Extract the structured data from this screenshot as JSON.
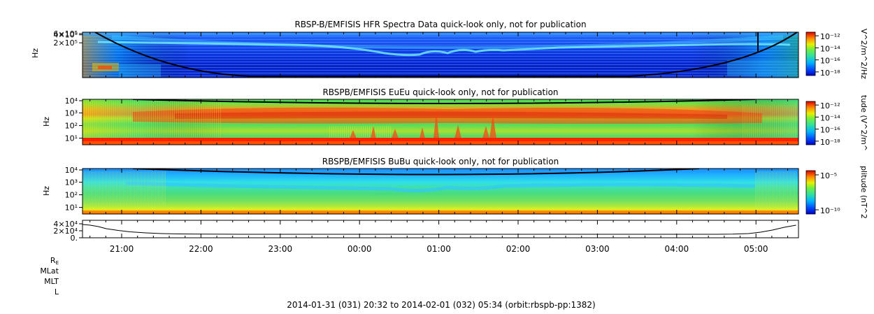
{
  "footer": "2014-01-31 (031) 20:32 to 2014-02-01 (032) 05:34 (orbit:rbspb-pp:1382)",
  "ephemeris_labels": [
    "R",
    "MLat",
    "MLT",
    "L"
  ],
  "ephemeris_label_subscript": "E",
  "chart_data": [
    {
      "type": "heatmap",
      "title": "RBSP-B/EMFISIS  HFR Spectra Data quick-look only, not for publication",
      "ylabel": "Hz",
      "y_ticks": [
        "6×10⁵",
        "4×10⁵",
        "2×10⁵"
      ],
      "y_tick_values": [
        600000,
        400000,
        200000
      ],
      "ylim": [
        10000,
        500000
      ],
      "log_scale_y": true,
      "colorbar": {
        "label": "V^2/m^2/Hz",
        "ticks": [
          "10⁻¹²",
          "10⁻¹⁴",
          "10⁻¹⁶",
          "10⁻¹⁸"
        ],
        "tick_values": [
          1e-12,
          1e-14,
          1e-16,
          1e-18
        ]
      },
      "x_ticks": [
        "21:00",
        "22:00",
        "23:00",
        "00:00",
        "01:00",
        "02:00",
        "03:00",
        "04:00",
        "05:00"
      ]
    },
    {
      "type": "heatmap",
      "title": "RBSPB/EMFISIS  EuEu quick-look only, not for publication",
      "ylabel": "Hz",
      "y_ticks": [
        "10⁴",
        "10³",
        "10²",
        "10¹"
      ],
      "y_tick_values": [
        10000,
        1000,
        100,
        10
      ],
      "ylim": [
        3,
        12000
      ],
      "log_scale_y": true,
      "colorbar": {
        "label": "tude (V^2/m^",
        "ticks": [
          "10⁻¹²",
          "10⁻¹⁴",
          "10⁻¹⁶",
          "10⁻¹⁸"
        ],
        "tick_values": [
          1e-12,
          1e-14,
          1e-16,
          1e-18
        ]
      },
      "x_ticks": [
        "21:00",
        "22:00",
        "23:00",
        "00:00",
        "01:00",
        "02:00",
        "03:00",
        "04:00",
        "05:00"
      ]
    },
    {
      "type": "heatmap",
      "title": "RBSPB/EMFISIS  BuBu quick-look only, not for publication",
      "ylabel": "Hz",
      "y_ticks": [
        "10⁴",
        "10³",
        "10²",
        "10¹"
      ],
      "y_tick_values": [
        10000,
        1000,
        100,
        10
      ],
      "ylim": [
        3,
        12000
      ],
      "log_scale_y": true,
      "colorbar": {
        "label": "plitude (nT^2",
        "ticks": [
          "10⁻⁵",
          "10⁻¹⁰"
        ],
        "tick_values": [
          1e-05,
          1e-10
        ]
      },
      "x_ticks": [
        "21:00",
        "22:00",
        "23:00",
        "00:00",
        "01:00",
        "02:00",
        "03:00",
        "04:00",
        "05:00"
      ]
    },
    {
      "type": "line",
      "title": "",
      "y_ticks": [
        "4×10⁴",
        "2×10⁴",
        "0."
      ],
      "y_tick_values": [
        40000,
        20000,
        0
      ],
      "ylim": [
        0,
        50000
      ],
      "x_ticks": [
        "21:00",
        "22:00",
        "23:00",
        "00:00",
        "01:00",
        "02:00",
        "03:00",
        "04:00",
        "05:00"
      ],
      "series": [
        {
          "hours_after_2032": [
            0,
            0.1,
            0.2,
            0.3,
            0.45,
            0.6,
            0.8,
            1.0,
            1.2,
            1.5,
            1.8,
            2.0,
            2.5,
            3.0,
            3.5,
            4.0,
            5.0,
            6.0,
            7.0,
            7.5,
            8.0,
            8.2,
            8.4,
            8.55,
            8.7,
            8.85,
            9.0
          ],
          "values": [
            38000,
            36000,
            32000,
            26000,
            21000,
            17000,
            14000,
            12000,
            11000,
            10500,
            10200,
            10000,
            10000,
            10000,
            10000,
            10000,
            10000,
            10000,
            10000,
            10000,
            10000,
            10500,
            12000,
            16000,
            22000,
            30000,
            36000
          ]
        }
      ]
    }
  ]
}
